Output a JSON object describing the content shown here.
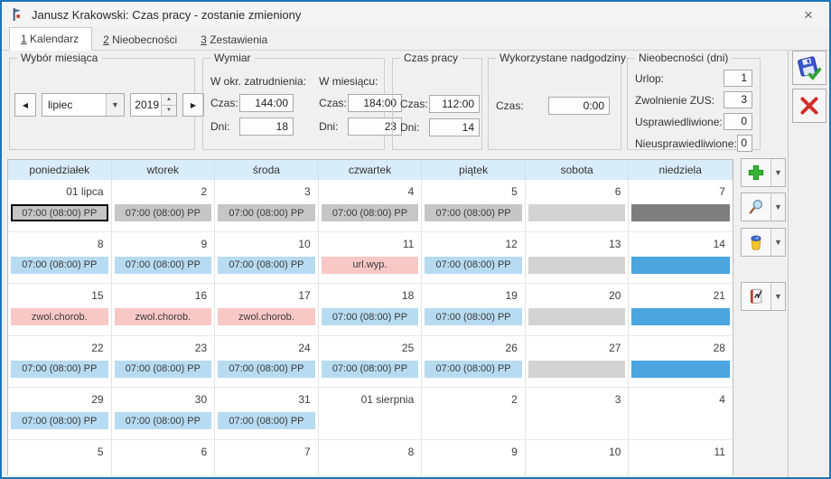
{
  "window": {
    "title": "Janusz Krakowski: Czas pracy - zostanie zmieniony",
    "close_glyph": "×"
  },
  "tabs": [
    {
      "num": "1",
      "label": "Kalendarz",
      "active": true
    },
    {
      "num": "2",
      "label": "Nieobecności",
      "active": false
    },
    {
      "num": "3",
      "label": "Zestawienia",
      "active": false
    }
  ],
  "month_selector": {
    "group_label": "Wybór miesiąca",
    "month": "lipiec",
    "year": "2019"
  },
  "wymiar": {
    "group_label": "Wymiar",
    "col1_header": "W okr. zatrudnienia:",
    "col2_header": "W miesiącu:",
    "czas_label": "Czas:",
    "dni_label": "Dni:",
    "col1_czas": "144:00",
    "col1_dni": "18",
    "col2_czas": "184:00",
    "col2_dni": "23"
  },
  "czas_pracy": {
    "group_label": "Czas pracy",
    "czas_label": "Czas:",
    "czas": "112:00",
    "dni_label": "Dni:",
    "dni": "14"
  },
  "nadgodziny": {
    "group_label": "Wykorzystane nadgodziny",
    "czas_label": "Czas:",
    "czas": "0:00"
  },
  "nieobecnosci": {
    "group_label": "Nieobecności (dni)",
    "rows": [
      {
        "label": "Urlop:",
        "value": "1"
      },
      {
        "label": "Zwolnienie ZUS:",
        "value": "3"
      },
      {
        "label": "Usprawiedliwione:",
        "value": "0"
      },
      {
        "label": "Nieusprawiedliwione:",
        "value": "0"
      }
    ]
  },
  "toolbar": {
    "buttons": [
      {
        "name": "add",
        "icon": "plus-icon"
      },
      {
        "name": "preview",
        "icon": "magnifier-icon"
      },
      {
        "name": "delete",
        "icon": "trash-icon"
      },
      {
        "name": "work-plan",
        "icon": "book-icon"
      }
    ]
  },
  "side_buttons": [
    {
      "name": "save",
      "icon": "floppy-check-icon"
    },
    {
      "name": "cancel",
      "icon": "red-x-icon"
    }
  ],
  "calendar": {
    "day_headers": [
      "poniedziałek",
      "wtorek",
      "środa",
      "czwartek",
      "piątek",
      "sobota",
      "niedziela"
    ],
    "work_entry": "07:00 (08:00) PP",
    "weeks": [
      {
        "cells": [
          {
            "date": "01 lipca",
            "chip": {
              "text": "07:00 (08:00) PP",
              "type": "gray",
              "selected": true
            }
          },
          {
            "date": "2",
            "chip": {
              "text": "07:00 (08:00) PP",
              "type": "gray"
            }
          },
          {
            "date": "3",
            "chip": {
              "text": "07:00 (08:00) PP",
              "type": "gray"
            }
          },
          {
            "date": "4",
            "chip": {
              "text": "07:00 (08:00) PP",
              "type": "gray"
            }
          },
          {
            "date": "5",
            "chip": {
              "text": "07:00 (08:00) PP",
              "type": "gray"
            }
          },
          {
            "date": "6",
            "chip": {
              "text": "",
              "type": "graylight"
            }
          },
          {
            "date": "7",
            "chip": {
              "text": "",
              "type": "darkgray"
            }
          }
        ]
      },
      {
        "cells": [
          {
            "date": "8",
            "chip": {
              "text": "07:00 (08:00) PP",
              "type": "blue"
            }
          },
          {
            "date": "9",
            "chip": {
              "text": "07:00 (08:00) PP",
              "type": "blue"
            }
          },
          {
            "date": "10",
            "chip": {
              "text": "07:00 (08:00) PP",
              "type": "blue"
            }
          },
          {
            "date": "11",
            "chip": {
              "text": "url.wyp.",
              "type": "pink"
            }
          },
          {
            "date": "12",
            "chip": {
              "text": "07:00 (08:00) PP",
              "type": "blue"
            }
          },
          {
            "date": "13",
            "chip": {
              "text": "",
              "type": "graylight"
            }
          },
          {
            "date": "14",
            "chip": {
              "text": "",
              "type": "bluesolid"
            }
          }
        ]
      },
      {
        "cells": [
          {
            "date": "15",
            "chip": {
              "text": "zwol.chorob.",
              "type": "pink"
            }
          },
          {
            "date": "16",
            "chip": {
              "text": "zwol.chorob.",
              "type": "pink"
            }
          },
          {
            "date": "17",
            "chip": {
              "text": "zwol.chorob.",
              "type": "pink"
            }
          },
          {
            "date": "18",
            "chip": {
              "text": "07:00 (08:00) PP",
              "type": "blue"
            }
          },
          {
            "date": "19",
            "chip": {
              "text": "07:00 (08:00) PP",
              "type": "blue"
            }
          },
          {
            "date": "20",
            "chip": {
              "text": "",
              "type": "graylight"
            }
          },
          {
            "date": "21",
            "chip": {
              "text": "",
              "type": "bluesolid"
            }
          }
        ]
      },
      {
        "cells": [
          {
            "date": "22",
            "chip": {
              "text": "07:00 (08:00) PP",
              "type": "blue"
            }
          },
          {
            "date": "23",
            "chip": {
              "text": "07:00 (08:00) PP",
              "type": "blue"
            }
          },
          {
            "date": "24",
            "chip": {
              "text": "07:00 (08:00) PP",
              "type": "blue"
            }
          },
          {
            "date": "25",
            "chip": {
              "text": "07:00 (08:00) PP",
              "type": "blue"
            }
          },
          {
            "date": "26",
            "chip": {
              "text": "07:00 (08:00) PP",
              "type": "blue"
            }
          },
          {
            "date": "27",
            "chip": {
              "text": "",
              "type": "graylight"
            }
          },
          {
            "date": "28",
            "chip": {
              "text": "",
              "type": "bluesolid"
            }
          }
        ]
      },
      {
        "cells": [
          {
            "date": "29",
            "chip": {
              "text": "07:00 (08:00) PP",
              "type": "blue"
            }
          },
          {
            "date": "30",
            "chip": {
              "text": "07:00 (08:00) PP",
              "type": "blue"
            }
          },
          {
            "date": "31",
            "chip": {
              "text": "07:00 (08:00) PP",
              "type": "blue"
            }
          },
          {
            "date": "01 sierpnia",
            "chip": null
          },
          {
            "date": "2",
            "chip": null
          },
          {
            "date": "3",
            "chip": null
          },
          {
            "date": "4",
            "chip": null
          }
        ]
      },
      {
        "cells": [
          {
            "date": "5",
            "chip": null
          },
          {
            "date": "6",
            "chip": null
          },
          {
            "date": "7",
            "chip": null
          },
          {
            "date": "8",
            "chip": null
          },
          {
            "date": "9",
            "chip": null
          },
          {
            "date": "10",
            "chip": null
          },
          {
            "date": "11",
            "chip": null
          }
        ]
      }
    ]
  },
  "colors": {
    "window_border": "#1c76bd",
    "header_strip": "#d9ecf9",
    "chip_gray": "#c6c6c6",
    "chip_darkgray": "#7e7e7e",
    "chip_blue": "#b7dbf1",
    "chip_pink": "#f8c8c6",
    "chip_bluesolid": "#4ba5de"
  }
}
